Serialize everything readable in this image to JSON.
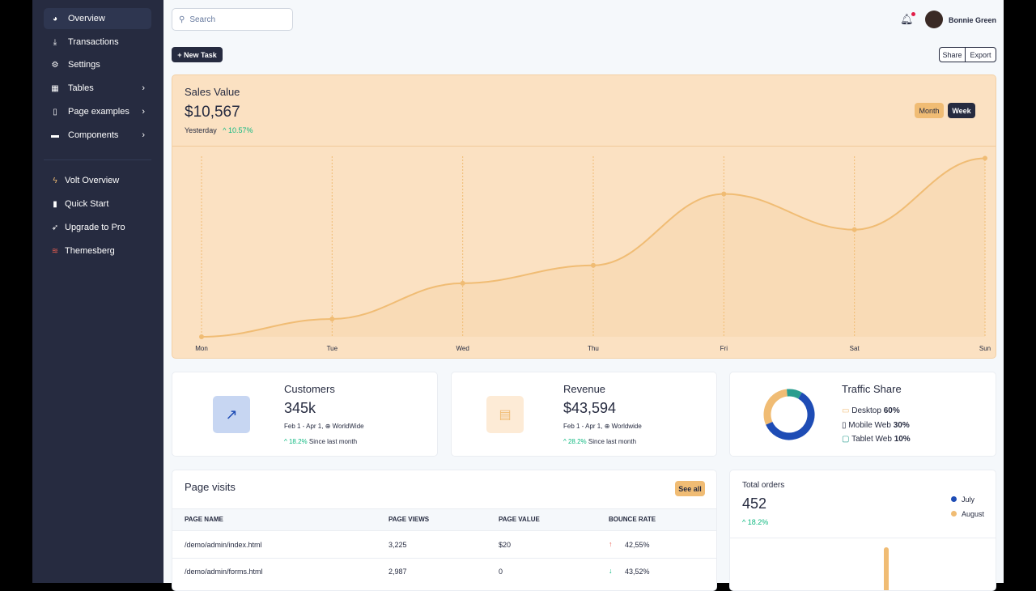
{
  "sidebar": {
    "items": [
      {
        "label": "Overview",
        "icon": "pie-chart-icon"
      },
      {
        "label": "Transactions",
        "icon": "hand-coin-icon"
      },
      {
        "label": "Settings",
        "icon": "gear-icon"
      },
      {
        "label": "Tables",
        "icon": "table-icon"
      },
      {
        "label": "Page examples",
        "icon": "document-icon"
      },
      {
        "label": "Components",
        "icon": "archive-icon"
      }
    ],
    "links": [
      {
        "label": "Volt Overview",
        "icon": "bolt-icon"
      },
      {
        "label": "Quick Start",
        "icon": "book-icon"
      },
      {
        "label": "Upgrade to Pro",
        "icon": "rocket-icon"
      },
      {
        "label": "Themesberg",
        "icon": "themesberg-logo-icon"
      }
    ]
  },
  "header": {
    "search_placeholder": "Search",
    "user_name": "Bonnie Green"
  },
  "toolbar": {
    "new_task": "+ New Task",
    "share": "Share",
    "export": "Export"
  },
  "sales": {
    "title": "Sales Value",
    "value": "$10,567",
    "period": "Yesterday",
    "change": "^ 10.57%",
    "month": "Month",
    "week": "Week"
  },
  "chart_data": {
    "type": "line",
    "categories": [
      "Mon",
      "Tue",
      "Wed",
      "Thu",
      "Fri",
      "Sat",
      "Sun"
    ],
    "values": [
      0,
      10,
      30,
      40,
      80,
      60,
      100
    ],
    "ylim": [
      0,
      107
    ],
    "grid": "vertical",
    "color": "#F0BC74"
  },
  "customers": {
    "title": "Customers",
    "value": "345k",
    "range": "Feb 1 - Apr 1, ⊕ WorldWide",
    "change": "^ 18.2%",
    "since": "Since last month"
  },
  "revenue": {
    "title": "Revenue",
    "value": "$43,594",
    "range": "Feb 1 - Apr 1, ⊕ Worldwide",
    "change": "^ 28.2%",
    "since": "Since last month"
  },
  "traffic": {
    "title": "Traffic Share",
    "items": [
      {
        "label": "Desktop",
        "pct": "60%",
        "value": 60,
        "color": "#1E4CB5"
      },
      {
        "label": "Mobile Web",
        "pct": "30%",
        "value": 30,
        "color": "#F0BC74"
      },
      {
        "label": "Tablet Web",
        "pct": "10%",
        "value": 10,
        "color": "#2A9D8F"
      }
    ]
  },
  "visits": {
    "title": "Page visits",
    "see_all": "See all",
    "columns": [
      "PAGE NAME",
      "PAGE VIEWS",
      "PAGE VALUE",
      "BOUNCE RATE"
    ],
    "rows": [
      {
        "name": "/demo/admin/index.html",
        "views": "3,225",
        "value": "$20",
        "bounce": "42,55%",
        "dir": "up"
      },
      {
        "name": "/demo/admin/forms.html",
        "views": "2,987",
        "value": "0",
        "bounce": "43,52%",
        "dir": "down"
      }
    ]
  },
  "orders": {
    "title": "Total orders",
    "value": "452",
    "change": "^ 18.2%",
    "legend": [
      {
        "label": "July",
        "color": "#1E4CB5"
      },
      {
        "label": "August",
        "color": "#F0BC74"
      }
    ]
  }
}
